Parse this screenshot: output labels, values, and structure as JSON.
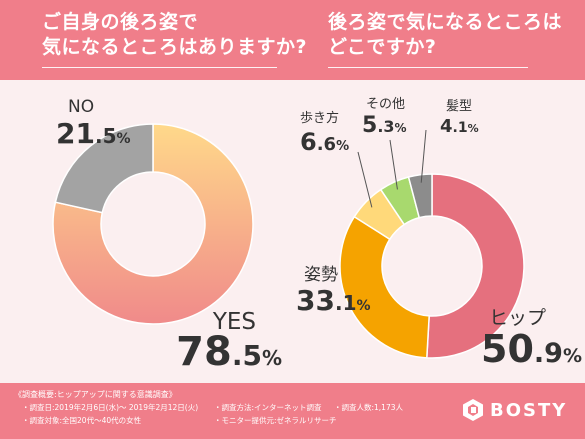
{
  "colors": {
    "header_bg": "#f07e8a",
    "panel_bg": "#fbeff0",
    "yes_gradient_from": "#f08a8a",
    "yes_gradient_to": "#ffd98a",
    "no": "#a3a3a3",
    "hip": "#e5707e",
    "posture": "#f5a300",
    "walk": "#ffd97a",
    "other": "#a8d96e",
    "hair": "#8c8c8c",
    "label_text": "#333333"
  },
  "header": {
    "question1": [
      "ご自身の後ろ姿で",
      "気になるところはありますか?"
    ],
    "question2": [
      "後ろ姿で気になるところは",
      "どこですか?"
    ]
  },
  "chart_data": [
    {
      "type": "pie",
      "variant": "donut",
      "title": "",
      "categories": [
        "YES",
        "NO"
      ],
      "values": [
        78.5,
        21.5
      ],
      "labels": [
        {
          "name": "YES",
          "int": "78",
          "dec": ".5",
          "pct": "%"
        },
        {
          "name": "NO",
          "int": "21",
          "dec": ".5",
          "pct": "%"
        }
      ]
    },
    {
      "type": "pie",
      "variant": "donut",
      "title": "",
      "categories": [
        "ヒップ",
        "姿勢",
        "歩き方",
        "その他",
        "髪型"
      ],
      "values": [
        50.9,
        33.1,
        6.6,
        5.3,
        4.1
      ],
      "labels": [
        {
          "name": "ヒップ",
          "int": "50",
          "dec": ".9",
          "pct": "%"
        },
        {
          "name": "姿勢",
          "int": "33",
          "dec": ".1",
          "pct": "%"
        },
        {
          "name": "歩き方",
          "int": "6",
          "dec": ".6",
          "pct": "%"
        },
        {
          "name": "その他",
          "int": "5",
          "dec": ".3",
          "pct": "%"
        },
        {
          "name": "髪型",
          "int": "4",
          "dec": ".1",
          "pct": "%"
        }
      ]
    }
  ],
  "footer": {
    "title": "《調査概要:ヒップアップに関する意識調査》",
    "period": "・調査日:2019年2月6日(水)〜 2019年2月12日(火)",
    "method": "・調査方法:インターネット調査",
    "count": "・調査人数:1,173人",
    "target": "・調査対象:全国20代〜40代の女性",
    "provider": "・モニター提供元:ゼネラルリサーチ"
  },
  "logo": {
    "text": "BOSTY",
    "icon": "bosty-logo-icon"
  }
}
